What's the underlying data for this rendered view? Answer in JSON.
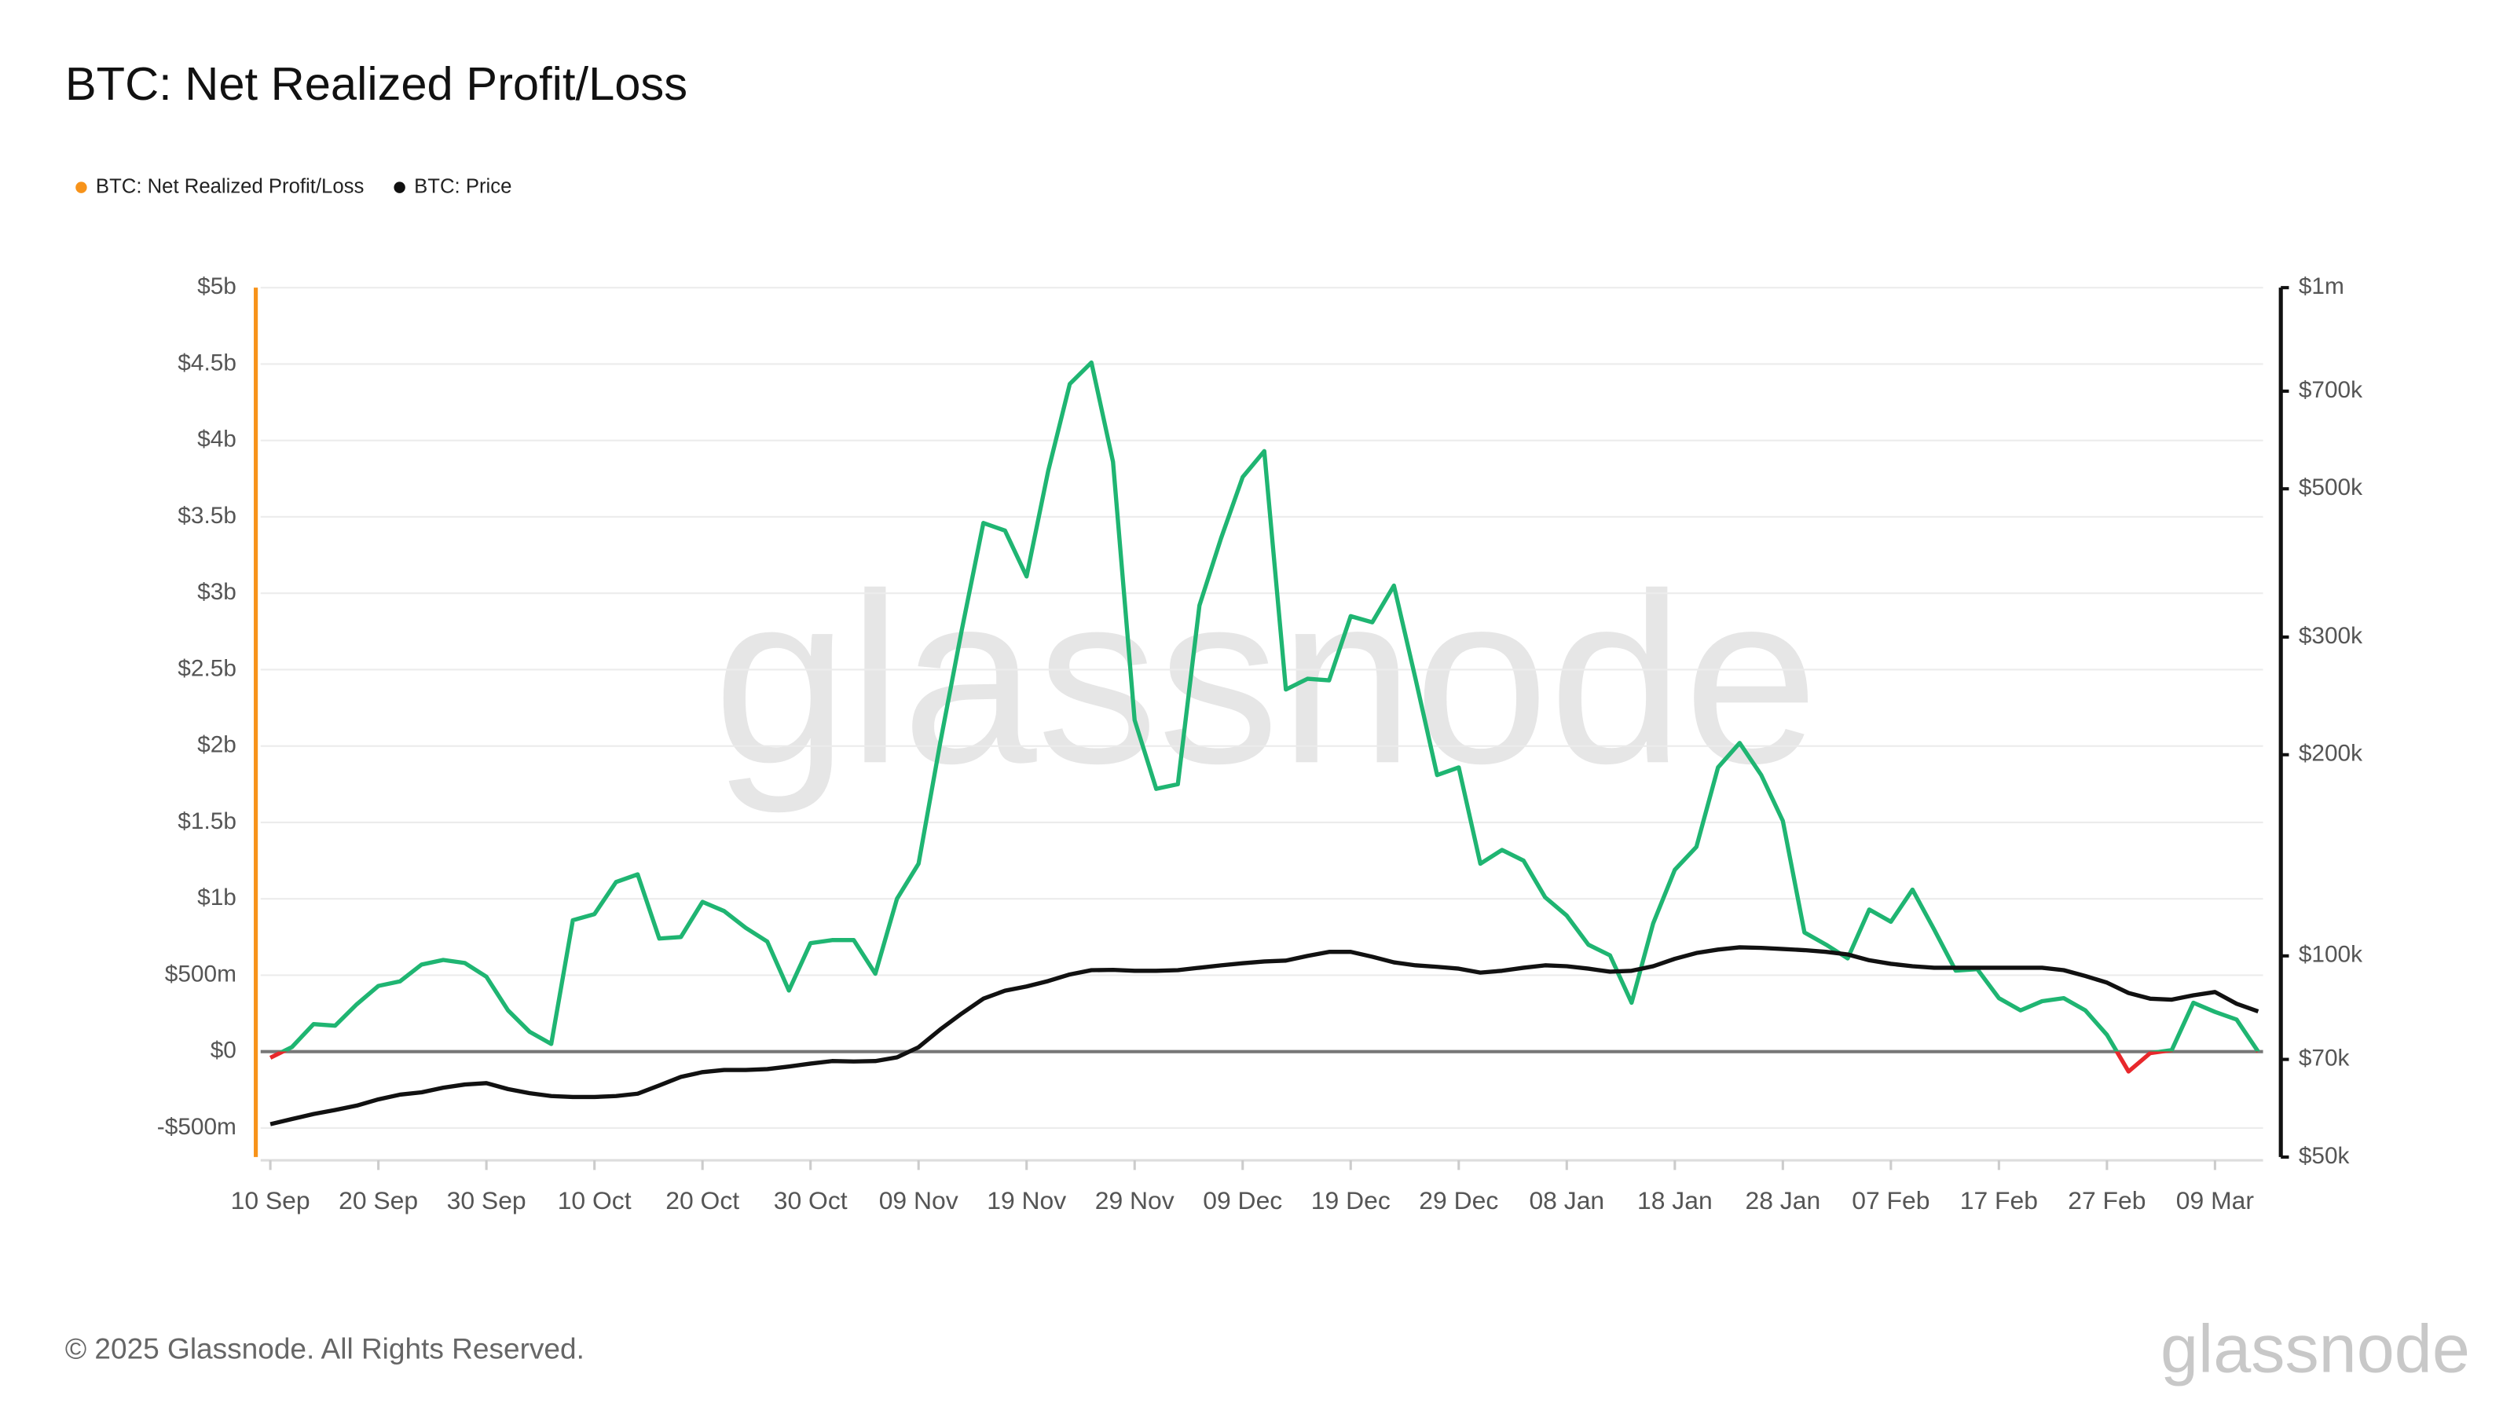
{
  "chart_data": {
    "type": "line",
    "title": "BTC: Net Realized Profit/Loss",
    "watermark": "glassnode",
    "footer": "© 2025 Glassnode. All Rights Reserved.",
    "logo": "glassnode",
    "categories": [
      "10 Sep",
      null,
      null,
      null,
      null,
      "20 Sep",
      null,
      null,
      null,
      null,
      "30 Sep",
      null,
      null,
      null,
      null,
      "10 Oct",
      null,
      null,
      null,
      null,
      "20 Oct",
      null,
      null,
      null,
      null,
      "30 Oct",
      null,
      null,
      null,
      null,
      "09 Nov",
      null,
      null,
      null,
      null,
      "19 Nov",
      null,
      null,
      null,
      null,
      "29 Nov",
      null,
      null,
      null,
      null,
      "09 Dec",
      null,
      null,
      null,
      null,
      "19 Dec",
      null,
      null,
      null,
      null,
      "29 Dec",
      null,
      null,
      null,
      null,
      "08 Jan",
      null,
      null,
      null,
      null,
      "18 Jan",
      null,
      null,
      null,
      null,
      "28 Jan",
      null,
      null,
      null,
      null,
      "07 Feb",
      null,
      null,
      null,
      null,
      "17 Feb",
      null,
      null,
      null,
      null,
      "27 Feb",
      null,
      null,
      null,
      null,
      "09 Mar",
      null,
      null
    ],
    "series": [
      {
        "name": "BTC: Net Realized Profit/Loss",
        "color": "#f7931a",
        "positive_color": "#1fb572",
        "negative_color": "#e8282c",
        "values": [
          -0.04,
          0.03,
          0.18,
          0.17,
          0.31,
          0.43,
          0.46,
          0.57,
          0.6,
          0.58,
          0.49,
          0.27,
          0.13,
          0.05,
          0.86,
          0.9,
          1.11,
          1.16,
          0.74,
          0.75,
          0.98,
          0.92,
          0.81,
          0.72,
          0.4,
          0.71,
          0.73,
          0.73,
          0.51,
          1.0,
          1.23,
          2.02,
          2.76,
          3.46,
          3.41,
          3.11,
          3.8,
          4.37,
          4.51,
          3.86,
          2.17,
          1.72,
          1.75,
          2.92,
          3.36,
          3.76,
          3.93,
          2.37,
          2.44,
          2.43,
          2.85,
          2.81,
          3.05,
          2.44,
          1.81,
          1.86,
          1.23,
          1.32,
          1.25,
          1.01,
          0.89,
          0.7,
          0.63,
          0.32,
          0.84,
          1.19,
          1.34,
          1.86,
          2.02,
          1.81,
          1.51,
          0.78,
          0.7,
          0.61,
          0.93,
          0.85,
          1.06,
          0.8,
          0.53,
          0.54,
          0.35,
          0.27,
          0.33,
          0.35,
          0.27,
          0.11,
          -0.13,
          -0.01,
          0.01,
          0.32,
          0.26,
          0.21,
          0.0
        ]
      },
      {
        "name": "BTC: Price",
        "color": "#111111",
        "axis": "y2",
        "values": [
          56000,
          57000,
          58000,
          58800,
          59700,
          61000,
          62000,
          62500,
          63500,
          64200,
          64500,
          63200,
          62300,
          61700,
          61500,
          61500,
          61700,
          62200,
          64000,
          65900,
          67000,
          67500,
          67500,
          67700,
          68300,
          69000,
          69600,
          69500,
          69600,
          70500,
          73000,
          77600,
          82000,
          86300,
          88700,
          90000,
          91700,
          93800,
          95200,
          95300,
          95000,
          95000,
          95200,
          96000,
          96800,
          97500,
          98100,
          98400,
          100000,
          101400,
          101400,
          99700,
          97800,
          96800,
          96300,
          95700,
          94400,
          95000,
          96000,
          96800,
          96500,
          95700,
          94700,
          95000,
          96500,
          99000,
          101000,
          102200,
          103000,
          102800,
          102400,
          102000,
          101400,
          100500,
          98500,
          97300,
          96500,
          96000,
          96000,
          96000,
          96000,
          96000,
          96000,
          95200,
          93300,
          91200,
          88000,
          86300,
          86000,
          87300,
          88300,
          84800,
          82600
        ]
      }
    ],
    "ylim": [
      -0.69,
      5
    ],
    "yticks": [
      {
        "value": -0.5,
        "label": "-$500m"
      },
      {
        "value": 0,
        "label": "$0"
      },
      {
        "value": 0.5,
        "label": "$500m"
      },
      {
        "value": 1,
        "label": "$1b"
      },
      {
        "value": 1.5,
        "label": "$1.5b"
      },
      {
        "value": 2,
        "label": "$2b"
      },
      {
        "value": 2.5,
        "label": "$2.5b"
      },
      {
        "value": 3,
        "label": "$3b"
      },
      {
        "value": 3.5,
        "label": "$3.5b"
      },
      {
        "value": 4,
        "label": "$4b"
      },
      {
        "value": 4.5,
        "label": "$4.5b"
      },
      {
        "value": 5,
        "label": "$5b"
      }
    ],
    "y2lim": [
      50000,
      1000000
    ],
    "y2_log": true,
    "y2ticks": [
      {
        "value": 50000,
        "label": "$50k"
      },
      {
        "value": 70000,
        "label": "$70k"
      },
      {
        "value": 100000,
        "label": "$100k"
      },
      {
        "value": 200000,
        "label": "$200k"
      },
      {
        "value": 300000,
        "label": "$300k"
      },
      {
        "value": 500000,
        "label": "$500k"
      },
      {
        "value": 700000,
        "label": "$700k"
      },
      {
        "value": 1000000,
        "label": "$1m"
      }
    ],
    "grid": true,
    "zero_line": true,
    "legend": "top-left"
  }
}
